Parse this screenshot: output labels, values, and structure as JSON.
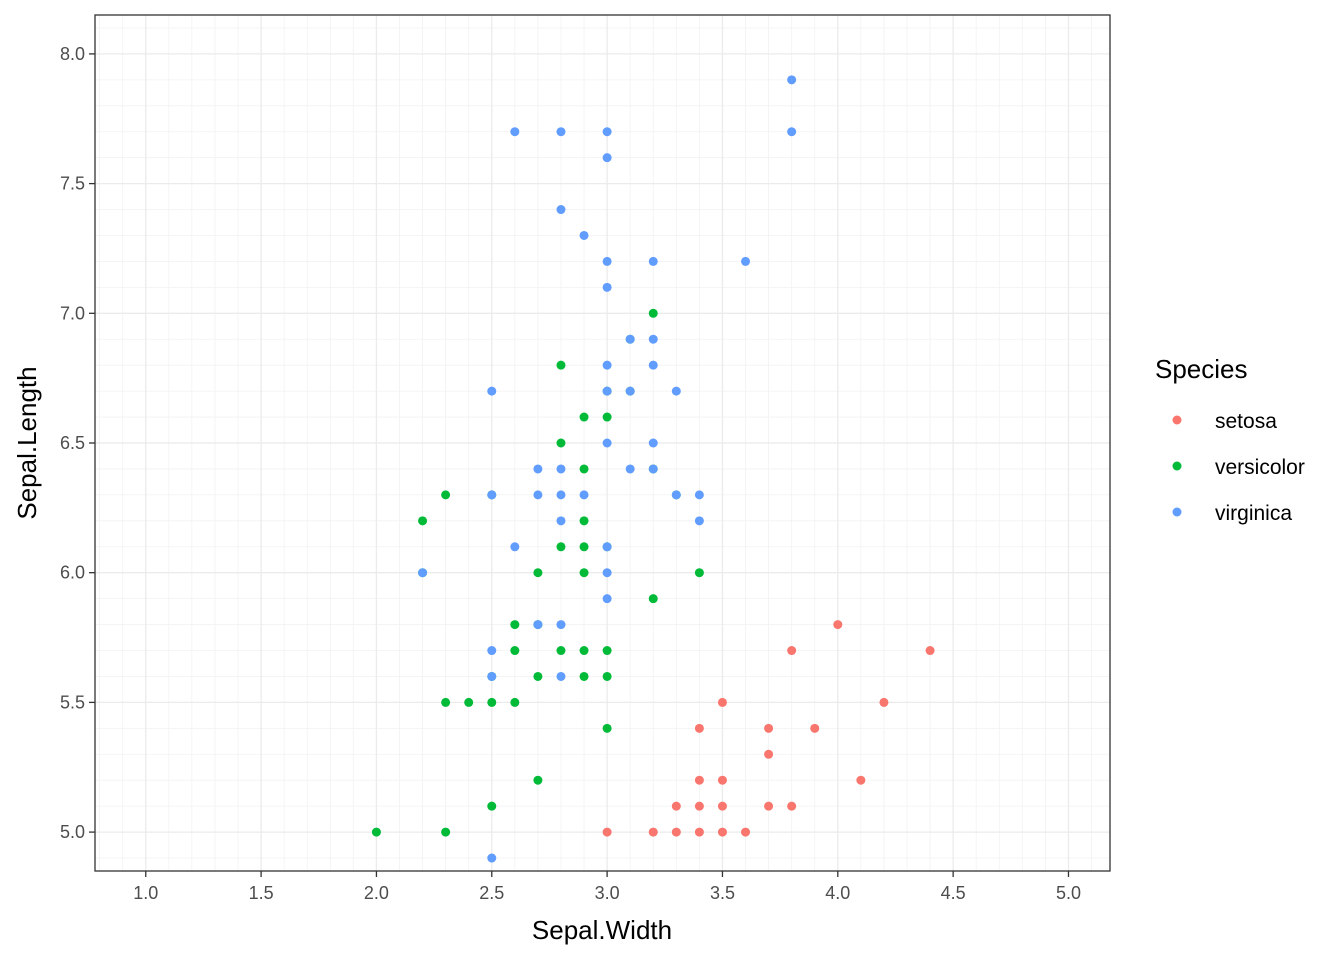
{
  "chart_data": {
    "type": "scatter",
    "xlabel": "Sepal.Width",
    "ylabel": "Sepal.Length",
    "xlim": [
      0.78,
      5.18
    ],
    "ylim": [
      4.85,
      8.15
    ],
    "x_ticks": [
      1.0,
      1.5,
      2.0,
      2.5,
      3.0,
      3.5,
      4.0,
      4.5,
      5.0
    ],
    "x_tick_labels": [
      "1.0",
      "1.5",
      "2.0",
      "2.5",
      "3.0",
      "3.5",
      "4.0",
      "4.5",
      "5.0"
    ],
    "y_ticks": [
      5.0,
      5.5,
      6.0,
      6.5,
      7.0,
      7.5,
      8.0
    ],
    "y_tick_labels": [
      "5.0",
      "5.5",
      "6.0",
      "6.5",
      "7.0",
      "7.5",
      "8.0"
    ],
    "minor_x_step": 0.1,
    "minor_y_step": 0.1,
    "grid": true,
    "legend": {
      "title": "Species",
      "position": "right"
    },
    "series": [
      {
        "name": "setosa",
        "color": "#F8766D",
        "points": [
          [
            3.0,
            5.0
          ],
          [
            3.2,
            5.0
          ],
          [
            3.3,
            5.0
          ],
          [
            3.4,
            5.0
          ],
          [
            3.5,
            5.0
          ],
          [
            3.6,
            5.0
          ],
          [
            3.3,
            5.1
          ],
          [
            3.4,
            5.1
          ],
          [
            3.5,
            5.1
          ],
          [
            3.7,
            5.1
          ],
          [
            3.8,
            5.1
          ],
          [
            3.4,
            5.2
          ],
          [
            3.5,
            5.2
          ],
          [
            4.1,
            5.2
          ],
          [
            3.7,
            5.3
          ],
          [
            3.4,
            5.4
          ],
          [
            3.7,
            5.4
          ],
          [
            3.9,
            5.4
          ],
          [
            3.5,
            5.5
          ],
          [
            4.2,
            5.5
          ],
          [
            3.8,
            5.7
          ],
          [
            4.4,
            5.7
          ],
          [
            4.0,
            5.8
          ]
        ]
      },
      {
        "name": "versicolor",
        "color": "#00BA38",
        "points": [
          [
            2.0,
            5.0
          ],
          [
            2.3,
            5.0
          ],
          [
            2.5,
            5.1
          ],
          [
            2.7,
            5.2
          ],
          [
            3.0,
            5.4
          ],
          [
            2.3,
            5.5
          ],
          [
            2.4,
            5.5
          ],
          [
            2.5,
            5.5
          ],
          [
            2.6,
            5.5
          ],
          [
            2.5,
            5.6
          ],
          [
            2.7,
            5.6
          ],
          [
            2.9,
            5.6
          ],
          [
            3.0,
            5.6
          ],
          [
            2.6,
            5.7
          ],
          [
            2.8,
            5.7
          ],
          [
            2.9,
            5.7
          ],
          [
            3.0,
            5.7
          ],
          [
            2.6,
            5.8
          ],
          [
            2.7,
            5.8
          ],
          [
            3.2,
            5.9
          ],
          [
            2.2,
            6.0
          ],
          [
            2.7,
            6.0
          ],
          [
            2.9,
            6.0
          ],
          [
            3.4,
            6.0
          ],
          [
            2.8,
            6.1
          ],
          [
            2.9,
            6.1
          ],
          [
            3.0,
            6.1
          ],
          [
            2.2,
            6.2
          ],
          [
            2.9,
            6.2
          ],
          [
            2.3,
            6.3
          ],
          [
            2.5,
            6.3
          ],
          [
            3.3,
            6.3
          ],
          [
            2.9,
            6.4
          ],
          [
            3.2,
            6.4
          ],
          [
            2.8,
            6.5
          ],
          [
            2.9,
            6.6
          ],
          [
            3.0,
            6.6
          ],
          [
            3.0,
            6.7
          ],
          [
            3.1,
            6.7
          ],
          [
            2.8,
            6.8
          ],
          [
            3.1,
            6.9
          ],
          [
            3.2,
            7.0
          ]
        ]
      },
      {
        "name": "virginica",
        "color": "#619CFF",
        "points": [
          [
            2.5,
            4.9
          ],
          [
            2.5,
            5.7
          ],
          [
            2.5,
            5.6
          ],
          [
            2.8,
            5.6
          ],
          [
            2.7,
            5.8
          ],
          [
            2.8,
            5.8
          ],
          [
            3.0,
            5.9
          ],
          [
            2.2,
            6.0
          ],
          [
            3.0,
            6.0
          ],
          [
            2.6,
            6.1
          ],
          [
            3.0,
            6.1
          ],
          [
            2.8,
            6.2
          ],
          [
            3.4,
            6.2
          ],
          [
            2.5,
            6.3
          ],
          [
            2.7,
            6.3
          ],
          [
            2.8,
            6.3
          ],
          [
            2.9,
            6.3
          ],
          [
            3.3,
            6.3
          ],
          [
            3.4,
            6.3
          ],
          [
            2.7,
            6.4
          ],
          [
            2.8,
            6.4
          ],
          [
            3.1,
            6.4
          ],
          [
            3.2,
            6.4
          ],
          [
            3.0,
            6.5
          ],
          [
            3.2,
            6.5
          ],
          [
            2.5,
            6.7
          ],
          [
            3.0,
            6.7
          ],
          [
            3.1,
            6.7
          ],
          [
            3.3,
            6.7
          ],
          [
            3.0,
            6.8
          ],
          [
            3.2,
            6.8
          ],
          [
            3.1,
            6.9
          ],
          [
            3.2,
            6.9
          ],
          [
            3.0,
            7.1
          ],
          [
            3.0,
            7.2
          ],
          [
            3.2,
            7.2
          ],
          [
            3.6,
            7.2
          ],
          [
            2.9,
            7.3
          ],
          [
            2.8,
            7.4
          ],
          [
            3.0,
            7.6
          ],
          [
            2.6,
            7.7
          ],
          [
            2.8,
            7.7
          ],
          [
            3.0,
            7.7
          ],
          [
            3.8,
            7.7
          ],
          [
            3.8,
            7.9
          ]
        ]
      }
    ]
  }
}
